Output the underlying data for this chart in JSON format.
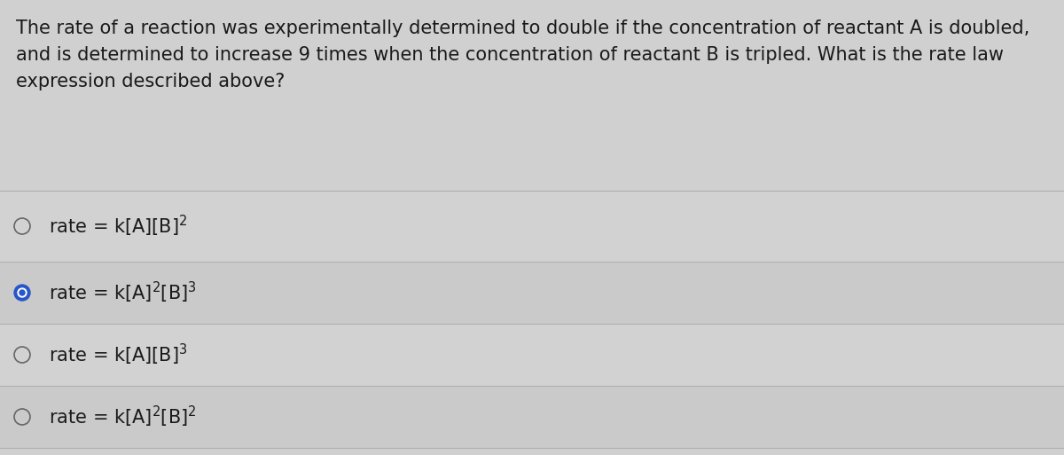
{
  "background_color": "#c8c8c8",
  "question_area_color": "#d8d8d8",
  "option_light_color": "#d4d4d4",
  "option_dark_color": "#c8c8c8",
  "question_text_lines": [
    "The rate of a reaction was experimentally determined to double if the concentration of reactant A is doubled,",
    "and is determined to increase 9 times when the concentration of reactant B is tripled. What is the rate law",
    "expression described above?"
  ],
  "options_selected": [
    false,
    true,
    false,
    false
  ],
  "text_color": "#1a1a1a",
  "selected_fill_color": "#2855c8",
  "selected_dot_color": "#2855c8",
  "circle_edge_color": "#666666",
  "font_size_question": 15,
  "font_size_options": 15,
  "divider_color": "#aaaaaa",
  "option_texts": [
    "rate = k[A][B]$^2$",
    "rate = k[A]$^2$[B]$^3$",
    "rate = k[A][B]$^3$",
    "rate = k[A]$^2$[B]$^2$"
  ]
}
